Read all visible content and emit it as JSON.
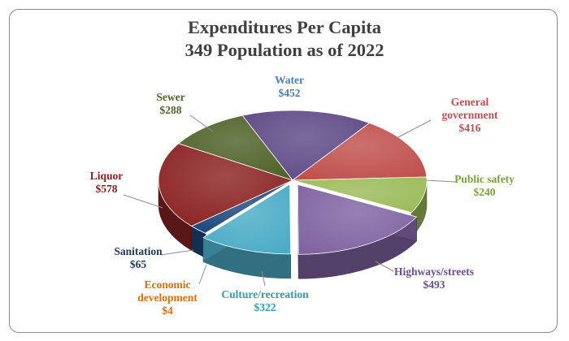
{
  "chart_data": {
    "type": "pie",
    "title": "Expenditures Per Capita",
    "subtitle": "349 Population as of 2022",
    "slices": [
      {
        "name": "Water",
        "label_lines": [
          "Water"
        ],
        "value": 452,
        "value_label": "$452",
        "color": "#5e4a86",
        "label_color": "#4a7ebb"
      },
      {
        "name": "General government",
        "label_lines": [
          "General",
          "government"
        ],
        "value": 416,
        "value_label": "$416",
        "color": "#c0504d",
        "label_color": "#c0504d"
      },
      {
        "name": "Public safety",
        "label_lines": [
          "Public safety"
        ],
        "value": 240,
        "value_label": "$240",
        "color": "#9bbb59",
        "label_color": "#77a33a"
      },
      {
        "name": "Highways/streets",
        "label_lines": [
          "Highways/streets"
        ],
        "value": 493,
        "value_label": "$493",
        "color": "#8064a2",
        "label_color": "#6a4f96"
      },
      {
        "name": "Culture/recreation",
        "label_lines": [
          "Culture/recreation"
        ],
        "value": 322,
        "value_label": "$322",
        "color": "#4bacc6",
        "label_color": "#2e9bb8"
      },
      {
        "name": "Economic development",
        "label_lines": [
          "Economic",
          "development"
        ],
        "value": 4,
        "value_label": "$4",
        "color": "#f79646",
        "label_color": "#e46c0a"
      },
      {
        "name": "Sanitation",
        "label_lines": [
          "Sanitation"
        ],
        "value": 65,
        "value_label": "$65",
        "color": "#1f497d",
        "label_color": "#1f3864"
      },
      {
        "name": "Liquor",
        "label_lines": [
          "Liquor"
        ],
        "value": 578,
        "value_label": "$578",
        "color": "#8b2323",
        "label_color": "#8b1a1a"
      },
      {
        "name": "Sewer",
        "label_lines": [
          "Sewer"
        ],
        "value": 288,
        "value_label": "$288",
        "color": "#4f6228",
        "label_color": "#4f6228"
      }
    ]
  }
}
